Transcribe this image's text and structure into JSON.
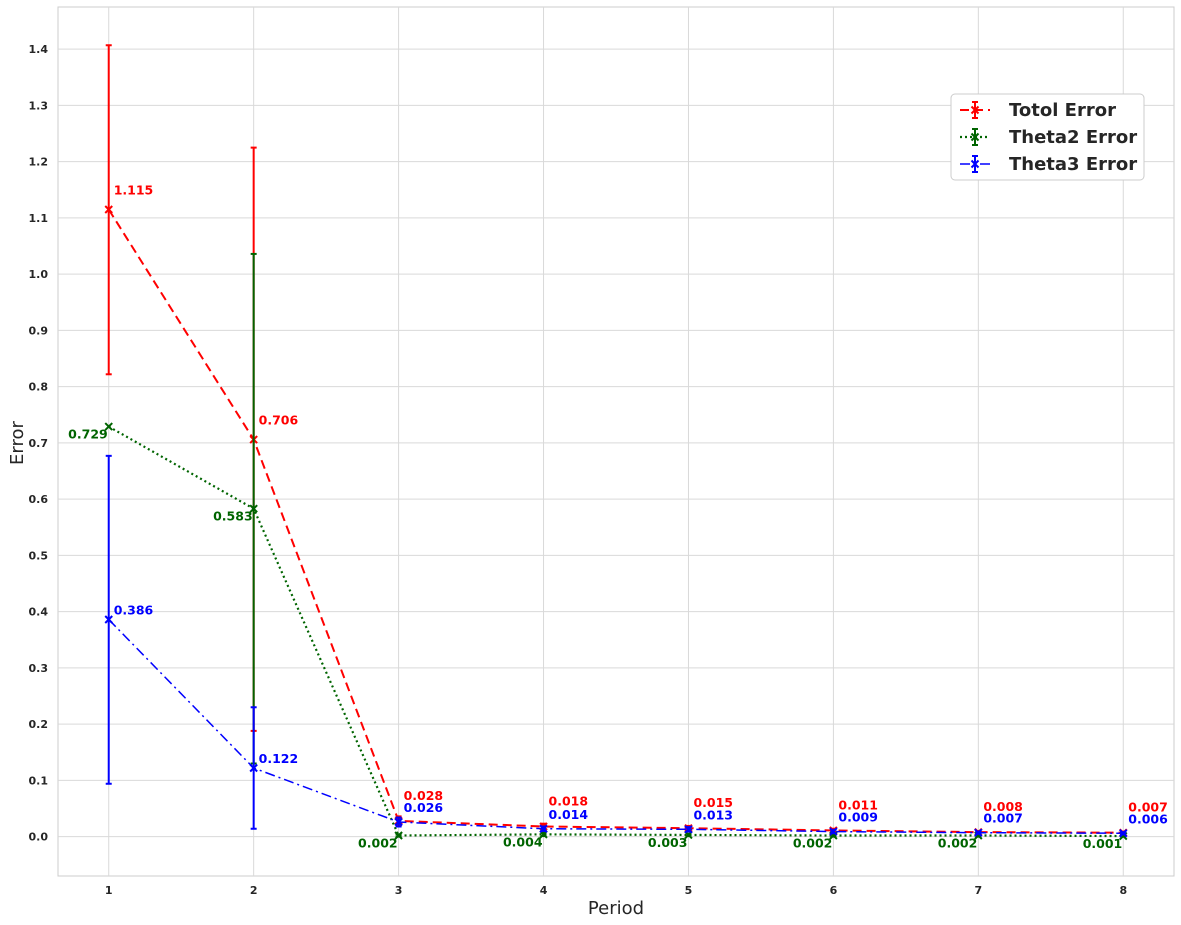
{
  "chart_data": {
    "type": "line",
    "xlabel": "Period",
    "ylabel": "Error",
    "x": [
      1,
      2,
      3,
      4,
      5,
      6,
      7,
      8
    ],
    "xlim": [
      0.65,
      8.35
    ],
    "ylim": [
      -0.07,
      1.475
    ],
    "yticks": [
      0.0,
      0.1,
      0.2,
      0.3,
      0.4,
      0.5,
      0.6,
      0.7,
      0.8,
      0.9,
      1.0,
      1.1,
      1.2,
      1.3,
      1.4
    ],
    "grid": true,
    "legend_position": "upper right",
    "series": [
      {
        "name": "Totol Error",
        "color": "#ff0000",
        "line_style": "dashed",
        "marker": "x",
        "values": [
          1.115,
          0.706,
          0.028,
          0.018,
          0.015,
          0.011,
          0.008,
          0.007
        ],
        "labels": [
          "1.115",
          "0.706",
          "0.028",
          "0.018",
          "0.015",
          "0.011",
          "0.008",
          "0.007"
        ],
        "error_low": [
          0.822,
          0.188,
          0.02,
          0.013,
          0.011,
          0.008,
          0.006,
          0.005
        ],
        "error_high": [
          1.407,
          1.225,
          0.036,
          0.023,
          0.019,
          0.014,
          0.01,
          0.009
        ]
      },
      {
        "name": "Theta2 Error",
        "color": "#006400",
        "line_style": "dotted",
        "marker": "x",
        "values": [
          0.729,
          0.583,
          0.002,
          0.004,
          0.003,
          0.002,
          0.002,
          0.001
        ],
        "labels": [
          "0.729",
          "0.583",
          "0.002",
          "0.004",
          "0.003",
          "0.002",
          "0.002",
          "0.001"
        ],
        "error_low": [
          0.729,
          0.13,
          0.0,
          0.001,
          0.001,
          0.0,
          0.0,
          0.0
        ],
        "error_high": [
          0.729,
          1.036,
          0.004,
          0.007,
          0.005,
          0.004,
          0.004,
          0.002
        ]
      },
      {
        "name": "Theta3 Error",
        "color": "#0000ff",
        "line_style": "dashdot",
        "marker": "x",
        "values": [
          0.386,
          0.122,
          0.026,
          0.014,
          0.013,
          0.009,
          0.007,
          0.006
        ],
        "labels": [
          "0.386",
          "0.122",
          "0.026",
          "0.014",
          "0.013",
          "0.009",
          "0.007",
          "0.006"
        ],
        "error_low": [
          0.094,
          0.014,
          0.018,
          0.01,
          0.009,
          0.006,
          0.005,
          0.004
        ],
        "error_high": [
          0.677,
          0.23,
          0.034,
          0.018,
          0.017,
          0.012,
          0.009,
          0.008
        ]
      }
    ]
  }
}
